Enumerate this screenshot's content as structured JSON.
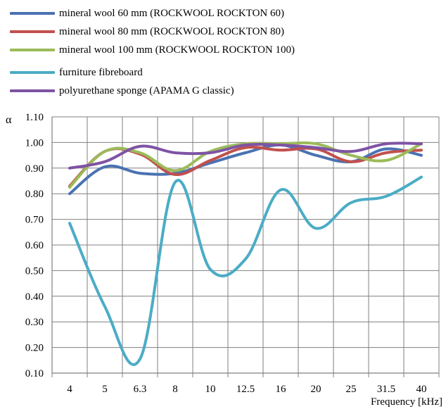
{
  "chart_data": {
    "type": "line",
    "ylabel": "α",
    "xlabel": "Frequency [kHz]",
    "categories": [
      "4",
      "5",
      "6.3",
      "8",
      "10",
      "12.5",
      "16",
      "20",
      "25",
      "31.5",
      "40"
    ],
    "ylim": [
      0.1,
      1.1
    ],
    "yticks": [
      "0.10",
      "0.20",
      "0.30",
      "0.40",
      "0.50",
      "0.60",
      "0.70",
      "0.80",
      "0.90",
      "1.00",
      "1.10"
    ],
    "grid": true,
    "legend_position": "top-left",
    "series": [
      {
        "name": "mineral wool 60 mm (ROCKWOOL ROCKTON 60)",
        "color": "#4A72B2",
        "values": [
          0.8,
          0.905,
          0.88,
          0.88,
          0.92,
          0.96,
          0.99,
          0.95,
          0.925,
          0.975,
          0.95
        ]
      },
      {
        "name": "mineral wool 80 mm (ROCKWOOL ROCKTON 80)",
        "color": "#C0504D",
        "values": [
          0.83,
          0.965,
          0.955,
          0.875,
          0.93,
          0.98,
          0.97,
          0.975,
          0.925,
          0.96,
          0.97
        ]
      },
      {
        "name": "mineral wool 100 mm (ROCKWOOL ROCKTON 100)",
        "color": "#9BBB59",
        "values": [
          0.825,
          0.965,
          0.96,
          0.89,
          0.965,
          0.995,
          0.995,
          0.995,
          0.95,
          0.93,
          0.995
        ]
      },
      {
        "name": "furniture fibreboard",
        "color": "#4BACC6",
        "values": [
          0.685,
          0.36,
          0.155,
          0.845,
          0.505,
          0.545,
          0.815,
          0.665,
          0.765,
          0.79,
          0.865
        ]
      },
      {
        "name": "polyurethane sponge (APAMA G classic)",
        "color": "#7E53A5",
        "values": [
          0.9,
          0.925,
          0.985,
          0.96,
          0.96,
          0.99,
          0.99,
          0.98,
          0.965,
          0.995,
          0.995
        ]
      }
    ]
  }
}
